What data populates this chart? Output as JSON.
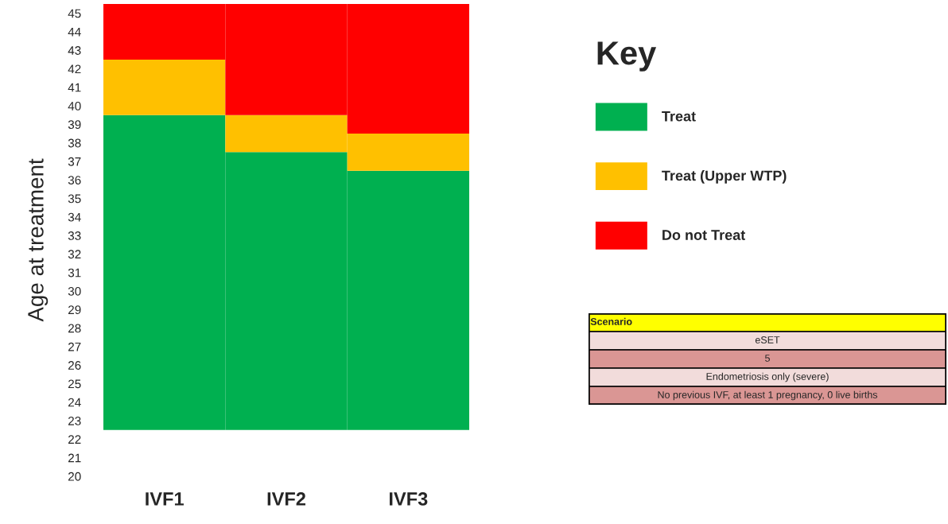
{
  "chart_data": {
    "type": "bar",
    "ylabel": "Age at treatment",
    "legend_title": "Key",
    "legend": "right",
    "grid": false,
    "categories": [
      "IVF1",
      "IVF2",
      "IVF3"
    ],
    "series": [
      {
        "name": "Treat",
        "color": "#00b050",
        "base": [
          22.5,
          22.5,
          22.5
        ],
        "values": [
          17,
          15,
          14
        ]
      },
      {
        "name": "Treat (Upper WTP)",
        "color": "#ffc000",
        "base": [
          39.5,
          37.5,
          36.5
        ],
        "values": [
          3,
          2,
          2
        ]
      },
      {
        "name": "Do not Treat",
        "color": "#ff0000",
        "base": [
          42.5,
          39.5,
          38.5
        ],
        "values": [
          3,
          6,
          7
        ]
      }
    ],
    "ylim": [
      20,
      45.5
    ],
    "yticks": [
      20,
      21,
      22,
      23,
      24,
      25,
      26,
      27,
      28,
      29,
      30,
      31,
      32,
      33,
      34,
      35,
      36,
      37,
      38,
      39,
      40,
      41,
      42,
      43,
      44,
      45
    ],
    "annotations": [
      "Scenario",
      "eSET",
      "5",
      "Endometriosis only (severe)",
      "No previous IVF, at least 1 pregnancy, 0 live births"
    ]
  }
}
